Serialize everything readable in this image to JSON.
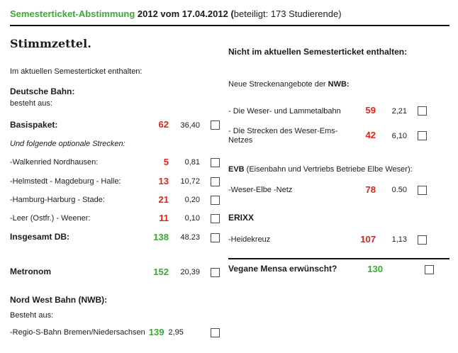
{
  "colors": {
    "green": "#3aaa35",
    "red": "#e2231a"
  },
  "header": {
    "title_green": "Semesterticket-Abstimmung",
    "title_bold": " 2012 vom 17.04.2012 (",
    "title_regular": "beteiligt: 173 Studierende)"
  },
  "left": {
    "heading": "Stimmzettel.",
    "included_intro": "Im aktuellen Semesterticket enthalten:",
    "db_title": "Deutsche Bahn:",
    "db_subtitle": "besteht aus:",
    "basispaket": {
      "label": "Basispaket:",
      "votes": "62",
      "price": "36,40"
    },
    "optional_intro": "Und folgende optionale Strecken:",
    "optional_rows": [
      {
        "label": "-Walkenried Nordhausen:",
        "votes": "5",
        "price": "0,81"
      },
      {
        "label": "-Helmstedt - Magdeburg - Halle:",
        "votes": "13",
        "price": "10,72"
      },
      {
        "label": "-Hamburg-Harburg - Stade:",
        "votes": "21",
        "price": "0,20"
      },
      {
        "label": "-Leer (Ostfr.) - Weener:",
        "votes": "11",
        "price": "0,10"
      }
    ],
    "insgesamt": {
      "label": "Insgesamt DB:",
      "votes": "138",
      "price": "48.23"
    },
    "metronom": {
      "label": "Metronom",
      "votes": "152",
      "price": "20,39"
    },
    "nwb_title": "Nord West Bahn (NWB):",
    "nwb_subtitle": "Besteht aus:",
    "regio": {
      "label": "-Regio-S-Bahn Bremen/Niedersachsen",
      "votes": "139",
      "price": "2,95"
    }
  },
  "right": {
    "heading": "Nicht im aktuellen Semesterticket enthalten:",
    "nwb_intro_regular": "Neue Streckenangebote der ",
    "nwb_intro_bold": "NWB:",
    "nwb_rows": [
      {
        "label": "- Die Weser- und Lammetalbahn",
        "votes": "59",
        "price": "2,21"
      },
      {
        "label": "- Die Strecken des Weser-Ems-Netzes",
        "votes": "42",
        "price": "6,10"
      }
    ],
    "evb_title_bold": "EVB",
    "evb_title_rest": " (Eisenbahn und Vertriebs Betriebe Elbe Weser):",
    "evb_row": {
      "label": "-Weser-Elbe -Netz",
      "votes": "78",
      "price": "0.50"
    },
    "erixx_title": "ERIXX",
    "erixx_row": {
      "label": "-Heidekreuz",
      "votes": "107",
      "price": "1,13"
    },
    "vegan": {
      "label": "Vegane Mensa erwünscht?",
      "votes": "130"
    }
  }
}
